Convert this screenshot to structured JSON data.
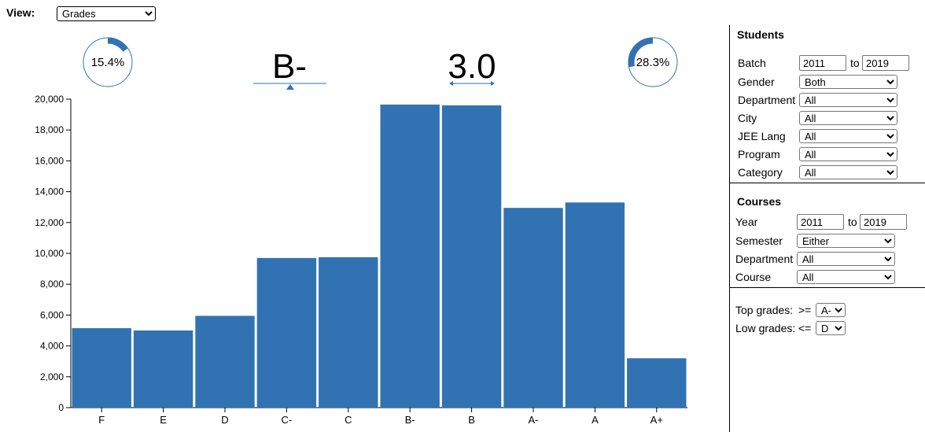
{
  "view": {
    "label": "View:",
    "selected": "Grades"
  },
  "gauges": [
    {
      "value_text": "15.4%",
      "fraction": 0.154
    },
    {
      "value_text": "28.3%",
      "fraction": 0.283
    }
  ],
  "summary": {
    "median_grade": "B-",
    "mean_gpa": "3.0"
  },
  "colors": {
    "bar": "#3173b2",
    "gauge_track": "#3173b2"
  },
  "chart_data": {
    "type": "bar",
    "categories": [
      "F",
      "E",
      "D",
      "C-",
      "C",
      "B-",
      "B",
      "A-",
      "A",
      "A+"
    ],
    "values": [
      5150,
      5000,
      5950,
      9700,
      9750,
      19650,
      19600,
      12950,
      13300,
      3200
    ],
    "ylim": [
      0,
      20000
    ],
    "yticks": [
      0,
      2000,
      4000,
      6000,
      8000,
      10000,
      12000,
      14000,
      16000,
      18000,
      20000
    ],
    "ytick_labels": [
      "0",
      "2,000",
      "4,000",
      "6,000",
      "8,000",
      "10,000",
      "12,000",
      "14,000",
      "16,000",
      "18,000",
      "20,000"
    ]
  },
  "students": {
    "title": "Students",
    "batch": {
      "label": "Batch",
      "from": "2011",
      "to_label": "to",
      "to": "2019"
    },
    "gender": {
      "label": "Gender",
      "value": "Both"
    },
    "department": {
      "label": "Department",
      "value": "All"
    },
    "city": {
      "label": "City",
      "value": "All"
    },
    "jee_lang": {
      "label": "JEE Lang",
      "value": "All"
    },
    "program": {
      "label": "Program",
      "value": "All"
    },
    "category": {
      "label": "Category",
      "value": "All"
    }
  },
  "courses": {
    "title": "Courses",
    "year": {
      "label": "Year",
      "from": "2011",
      "to_label": "to",
      "to": "2019"
    },
    "semester": {
      "label": "Semester",
      "value": "Either"
    },
    "department": {
      "label": "Department",
      "value": "All"
    },
    "course": {
      "label": "Course",
      "value": "All"
    }
  },
  "grades_filter": {
    "top": {
      "label": "Top grades:",
      "op": ">=",
      "value": "A-"
    },
    "low": {
      "label": "Low grades:",
      "op": "<=",
      "value": "D"
    }
  }
}
